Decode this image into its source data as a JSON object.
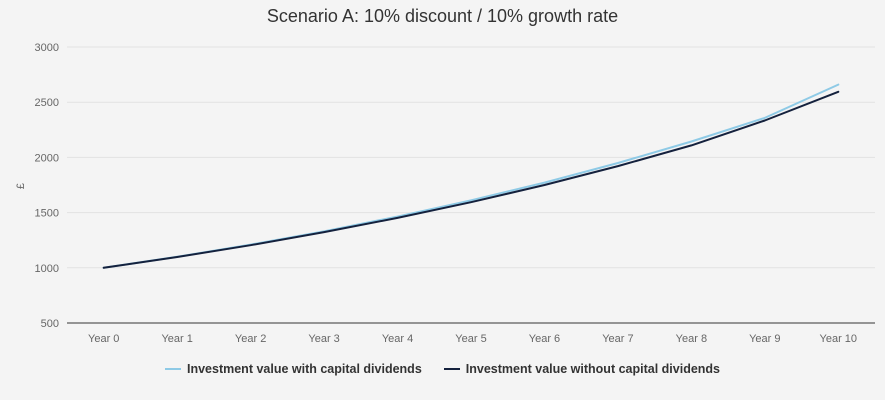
{
  "chart_data": {
    "type": "line",
    "title": "Scenario A: 10% discount / 10% growth rate",
    "xlabel": "",
    "ylabel": "£",
    "categories": [
      "Year 0",
      "Year 1",
      "Year 2",
      "Year 3",
      "Year 4",
      "Year 5",
      "Year 6",
      "Year 7",
      "Year 8",
      "Year 9",
      "Year 10"
    ],
    "ylim": [
      500,
      3000
    ],
    "yticks": [
      "500",
      "1000",
      "1500",
      "2000",
      "2500",
      "3000"
    ],
    "grid": true,
    "legend_position": "bottom",
    "series": [
      {
        "name": "Investment value with capital dividends",
        "color": "#8ecae6",
        "values": [
          1000,
          1100,
          1210,
          1331,
          1464,
          1611,
          1772,
          1949,
          2144,
          2358,
          2659
        ]
      },
      {
        "name": "Investment value without capital dividends",
        "color": "#14213d",
        "values": [
          1000,
          1098,
          1205,
          1323,
          1452,
          1594,
          1750,
          1921,
          2109,
          2334,
          2594
        ]
      }
    ]
  }
}
